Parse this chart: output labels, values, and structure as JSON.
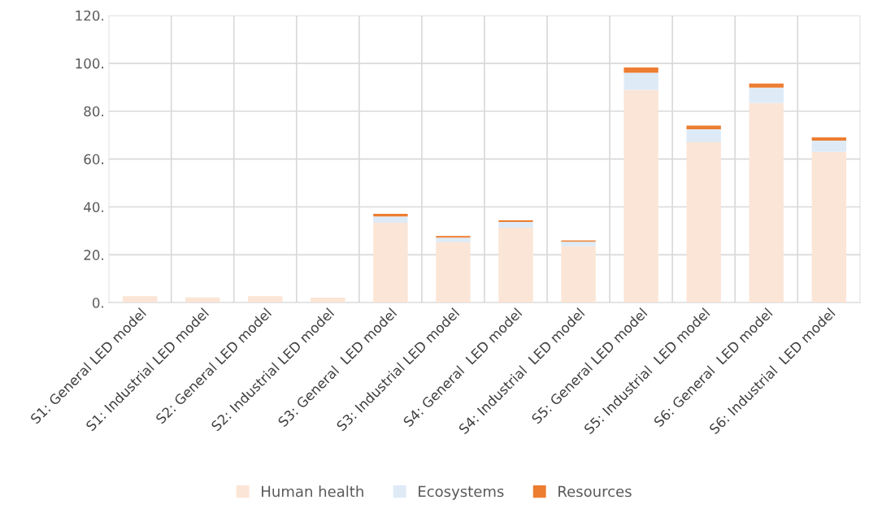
{
  "chart_data": {
    "type": "bar",
    "stacked": true,
    "categories": [
      "S1: General LED model",
      "S1: Industrial LED model",
      "S2: General LED model",
      "S2: Industrial LED model",
      "S3: General  LED model",
      "S3: Industrial LED model",
      "S4: General  LED model",
      "S4: Industrial  LED model",
      "S5: General LED model",
      "S5: Industrial  LED model",
      "S6: General  LED model",
      "S6: Industrial  LED model"
    ],
    "series": [
      {
        "name": "Human health",
        "color": "#fbe5d6",
        "values": [
          2.7,
          2.2,
          2.7,
          2.1,
          33.4,
          25.2,
          31.3,
          23.6,
          88.9,
          67.0,
          83.4,
          63.0
        ]
      },
      {
        "name": "Ecosystems",
        "color": "#deebf7",
        "values": [
          null,
          null,
          null,
          null,
          2.6,
          2.0,
          2.4,
          1.9,
          7.1,
          5.4,
          6.4,
          4.7
        ]
      },
      {
        "name": "Resources",
        "color": "#ed7d31",
        "values": [
          null,
          null,
          null,
          null,
          1.1,
          0.7,
          0.7,
          0.5,
          2.2,
          1.6,
          1.7,
          1.3
        ]
      }
    ],
    "ylim": [
      0,
      120
    ],
    "yticks": [
      {
        "value": 0,
        "label": "0."
      },
      {
        "value": 20,
        "label": "20."
      },
      {
        "value": 40,
        "label": "40."
      },
      {
        "value": 60,
        "label": "60."
      },
      {
        "value": 80,
        "label": "80."
      },
      {
        "value": 100,
        "label": "100."
      },
      {
        "value": 120,
        "label": "120."
      }
    ],
    "grid": true,
    "legend": "bottom"
  }
}
